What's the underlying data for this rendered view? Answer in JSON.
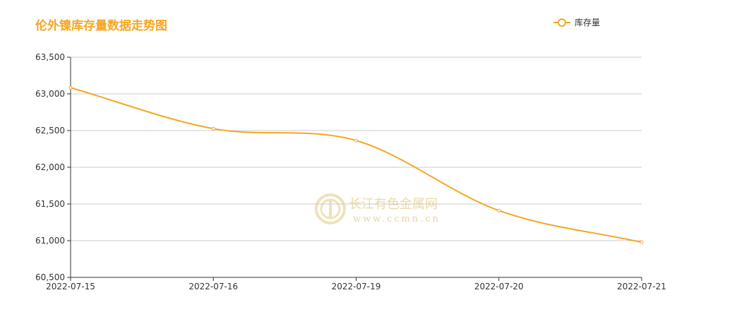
{
  "colors": {
    "accent": "#f5a623",
    "grid": "#cccccc",
    "axis": "#333333"
  },
  "watermark": {
    "name": "长江有色金属网",
    "url": "www.ccmn.cn",
    "icon": "ccmn-logo-icon"
  },
  "chart_data": {
    "type": "line",
    "title": "伦外镍库存量数据走势图",
    "xlabel": "",
    "ylabel": "",
    "categories": [
      "2022-07-15",
      "2022-07-16",
      "2022-07-19",
      "2022-07-20",
      "2022-07-21"
    ],
    "series": [
      {
        "name": "库存量",
        "values": [
          63084,
          62526,
          62364,
          61410,
          60978
        ]
      }
    ],
    "ylim": [
      60500,
      63500
    ],
    "yticks": [
      "60,500",
      "61,000",
      "61,500",
      "62,000",
      "62,500",
      "63,000",
      "63,500"
    ],
    "ytick_values": [
      60500,
      61000,
      61500,
      62000,
      62500,
      63000,
      63500
    ],
    "grid": true,
    "smooth": true,
    "legend": "top-right"
  }
}
